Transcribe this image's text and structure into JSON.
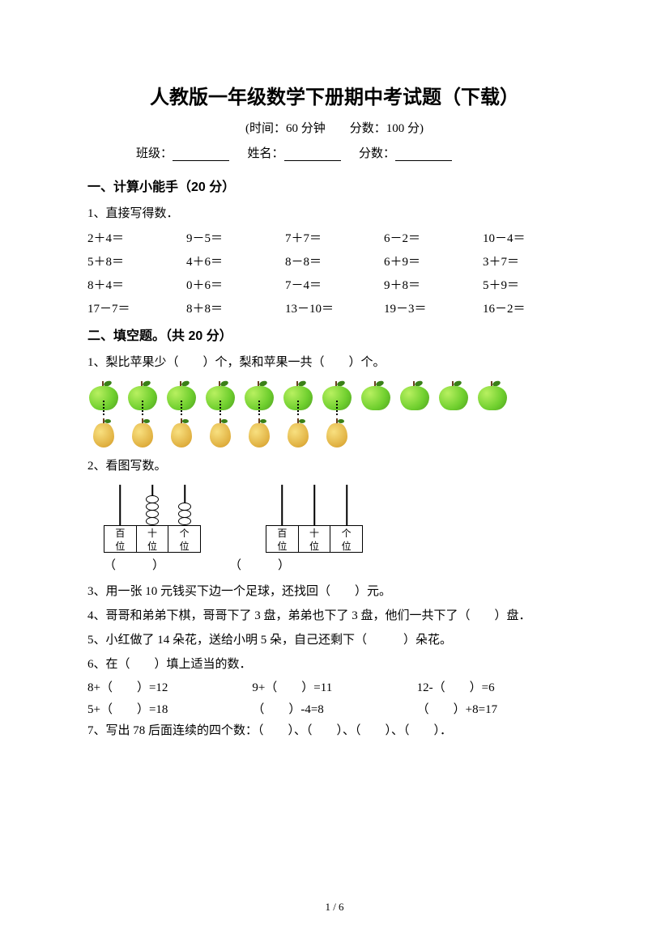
{
  "title": "人教版一年级数学下册期中考试题（下载）",
  "subtitle": "(时间：60 分钟　　分数：100 分)",
  "info": {
    "class_label": "班级：",
    "name_label": "姓名：",
    "score_label": "分数："
  },
  "s1": {
    "head": "一、计算小能手（20 分）",
    "q1_label": "1、直接写得数．",
    "cells": [
      "2＋4＝",
      "9－5＝",
      "7＋7＝",
      "6－2＝",
      "10－4＝",
      "5＋8＝",
      "4＋6＝",
      "8－8＝",
      "6＋9＝",
      "3＋7＝",
      "8＋4＝",
      "0＋6＝",
      "7－4＝",
      "9＋8＝",
      "5＋9＝",
      "17－7＝",
      "8＋8＝",
      "13－10＝",
      "19－3＝",
      "16－2＝"
    ]
  },
  "s2": {
    "head": "二、填空题。（共 20 分）",
    "q1": "1、梨比苹果少（　　）个，梨和苹果一共（　　）个。",
    "apple_count": 11,
    "pear_count": 7,
    "q2": "2、看图写数。",
    "abacus_labels": [
      "百位",
      "十位",
      "个位"
    ],
    "abacus1_beads": [
      0,
      4,
      3
    ],
    "abacus2_beads": [
      0,
      0,
      0
    ],
    "paren1": "（　　　）",
    "paren2": "（　　　）",
    "q3": "3、用一张 10 元钱买下边一个足球，还找回（　　）元。",
    "q4": "4、哥哥和弟弟下棋，哥哥下了 3 盘，弟弟也下了 3 盘，他们一共下了（　　）盘．",
    "q5": "5、小红做了 14 朵花，送给小明 5 朵，自己还剩下（　　　）朵花。",
    "q6": "6、在（　　）填上适当的数．",
    "eq": [
      "8+（　　）=12",
      "9+（　　）=11",
      "12-（　　）=6",
      "5+（　　）=18",
      "（　　）-4=8",
      "（　　）+8=17"
    ],
    "q7": "7、写出 78 后面连续的四个数：（　　）、（　　）、（　　）、（　　）．"
  },
  "page": "1 / 6"
}
